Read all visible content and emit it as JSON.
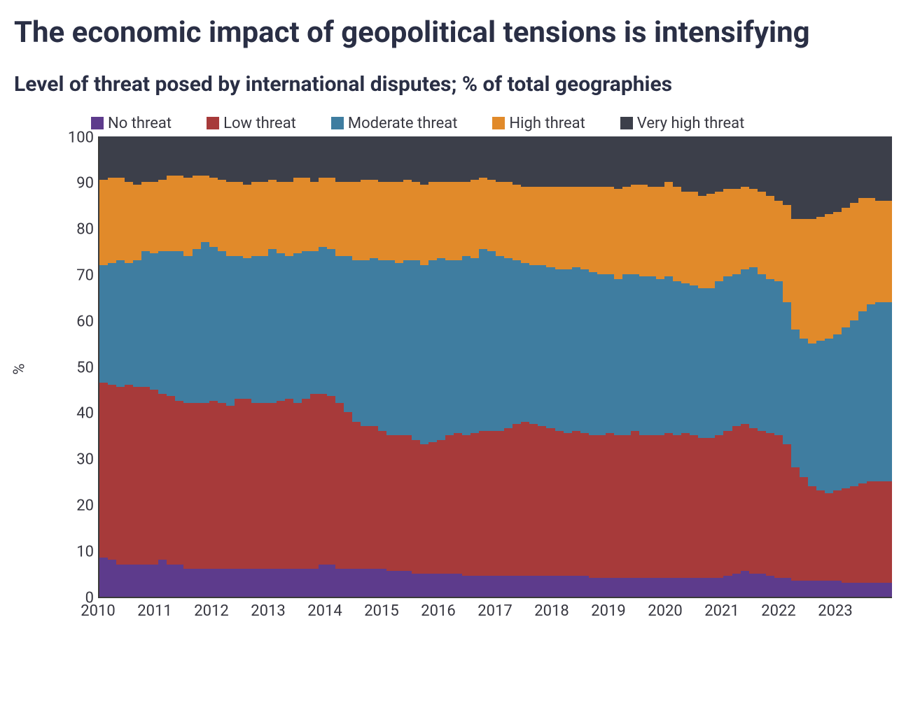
{
  "title": "The economic impact of geopolitical tensions is intensifying",
  "subtitle": "Level of threat posed by international disputes; % of total geographies",
  "chart": {
    "type": "stacked-area-100",
    "ylabel": "%",
    "ylim": [
      0,
      100
    ],
    "ytick_step": 10,
    "yticks": [
      0,
      10,
      20,
      30,
      40,
      50,
      60,
      70,
      80,
      90,
      100
    ],
    "xlim": [
      2010,
      2024
    ],
    "xticks": [
      2010,
      2011,
      2012,
      2013,
      2014,
      2015,
      2016,
      2017,
      2018,
      2019,
      2020,
      2021,
      2022,
      2023
    ],
    "background_color": "#ffffff",
    "axis_color": "#3a3a3a",
    "tick_font_size": 22,
    "title_font_size": 42,
    "subtitle_font_size": 30,
    "legend_position": "top",
    "legend": [
      {
        "label": "No threat",
        "color": "#5d3b8c"
      },
      {
        "label": "Low threat",
        "color": "#a73a3a"
      },
      {
        "label": "Moderate threat",
        "color": "#3f7da0"
      },
      {
        "label": "High threat",
        "color": "#e18a2a"
      },
      {
        "label": "Very high threat",
        "color": "#3c3f4a"
      }
    ],
    "series_order_bottom_to_top": [
      "no_threat",
      "low_threat",
      "moderate_threat",
      "high_threat",
      "very_high_threat"
    ],
    "series_colors": {
      "no_threat": "#5d3b8c",
      "low_threat": "#a73a3a",
      "moderate_threat": "#3f7da0",
      "high_threat": "#e18a2a",
      "very_high_threat": "#3c3f4a"
    },
    "cum": {
      "comment": "Cumulative boundaries (%) from bottom: c1=No, c2=No+Low, c3=+Moderate, c4=+High. VeryHigh fills to 100.",
      "points": [
        {
          "x": 2010.0,
          "c1": 8.5,
          "c2": 46.5,
          "c3": 72.0,
          "c4": 90.5
        },
        {
          "x": 2010.1,
          "c1": 8.0,
          "c2": 46.0,
          "c3": 72.5,
          "c4": 91.0
        },
        {
          "x": 2010.25,
          "c1": 7.0,
          "c2": 45.5,
          "c3": 73.0,
          "c4": 91.0
        },
        {
          "x": 2010.4,
          "c1": 7.0,
          "c2": 46.0,
          "c3": 72.5,
          "c4": 90.0
        },
        {
          "x": 2010.55,
          "c1": 7.0,
          "c2": 45.5,
          "c3": 73.0,
          "c4": 89.5
        },
        {
          "x": 2010.7,
          "c1": 7.0,
          "c2": 45.5,
          "c3": 75.0,
          "c4": 90.0
        },
        {
          "x": 2010.85,
          "c1": 7.0,
          "c2": 45.0,
          "c3": 74.5,
          "c4": 90.0
        },
        {
          "x": 2011.0,
          "c1": 8.0,
          "c2": 44.0,
          "c3": 75.0,
          "c4": 90.5
        },
        {
          "x": 2011.15,
          "c1": 7.0,
          "c2": 43.5,
          "c3": 75.0,
          "c4": 91.5
        },
        {
          "x": 2011.3,
          "c1": 7.0,
          "c2": 42.5,
          "c3": 75.0,
          "c4": 91.5
        },
        {
          "x": 2011.45,
          "c1": 6.0,
          "c2": 42.0,
          "c3": 74.0,
          "c4": 91.0
        },
        {
          "x": 2011.6,
          "c1": 6.0,
          "c2": 42.0,
          "c3": 75.5,
          "c4": 91.5
        },
        {
          "x": 2011.75,
          "c1": 6.0,
          "c2": 42.0,
          "c3": 77.0,
          "c4": 91.5
        },
        {
          "x": 2011.9,
          "c1": 6.0,
          "c2": 42.5,
          "c3": 76.0,
          "c4": 91.0
        },
        {
          "x": 2012.05,
          "c1": 6.0,
          "c2": 42.0,
          "c3": 75.0,
          "c4": 90.5
        },
        {
          "x": 2012.2,
          "c1": 6.0,
          "c2": 41.5,
          "c3": 74.0,
          "c4": 90.0
        },
        {
          "x": 2012.35,
          "c1": 6.0,
          "c2": 43.0,
          "c3": 74.0,
          "c4": 90.0
        },
        {
          "x": 2012.5,
          "c1": 6.0,
          "c2": 43.0,
          "c3": 73.5,
          "c4": 89.5
        },
        {
          "x": 2012.65,
          "c1": 6.0,
          "c2": 42.0,
          "c3": 74.0,
          "c4": 90.0
        },
        {
          "x": 2012.8,
          "c1": 6.0,
          "c2": 42.0,
          "c3": 74.0,
          "c4": 90.0
        },
        {
          "x": 2012.95,
          "c1": 6.0,
          "c2": 42.0,
          "c3": 75.5,
          "c4": 90.5
        },
        {
          "x": 2013.1,
          "c1": 6.0,
          "c2": 42.5,
          "c3": 74.5,
          "c4": 90.0
        },
        {
          "x": 2013.25,
          "c1": 6.0,
          "c2": 43.0,
          "c3": 74.0,
          "c4": 90.0
        },
        {
          "x": 2013.4,
          "c1": 6.0,
          "c2": 42.0,
          "c3": 74.5,
          "c4": 91.0
        },
        {
          "x": 2013.55,
          "c1": 6.0,
          "c2": 43.0,
          "c3": 75.0,
          "c4": 91.0
        },
        {
          "x": 2013.7,
          "c1": 6.0,
          "c2": 44.0,
          "c3": 75.0,
          "c4": 90.0
        },
        {
          "x": 2013.85,
          "c1": 7.0,
          "c2": 44.0,
          "c3": 76.0,
          "c4": 91.0
        },
        {
          "x": 2014.0,
          "c1": 7.0,
          "c2": 43.5,
          "c3": 75.5,
          "c4": 91.0
        },
        {
          "x": 2014.15,
          "c1": 6.0,
          "c2": 42.0,
          "c3": 74.0,
          "c4": 90.0
        },
        {
          "x": 2014.3,
          "c1": 6.0,
          "c2": 40.0,
          "c3": 74.0,
          "c4": 90.0
        },
        {
          "x": 2014.45,
          "c1": 6.0,
          "c2": 38.0,
          "c3": 73.0,
          "c4": 90.0
        },
        {
          "x": 2014.6,
          "c1": 6.0,
          "c2": 37.0,
          "c3": 73.0,
          "c4": 90.5
        },
        {
          "x": 2014.75,
          "c1": 6.0,
          "c2": 37.0,
          "c3": 73.5,
          "c4": 90.5
        },
        {
          "x": 2014.9,
          "c1": 6.0,
          "c2": 36.0,
          "c3": 73.0,
          "c4": 90.0
        },
        {
          "x": 2015.05,
          "c1": 5.5,
          "c2": 35.0,
          "c3": 73.0,
          "c4": 90.0
        },
        {
          "x": 2015.2,
          "c1": 5.5,
          "c2": 35.0,
          "c3": 72.5,
          "c4": 90.0
        },
        {
          "x": 2015.35,
          "c1": 5.5,
          "c2": 35.0,
          "c3": 73.0,
          "c4": 90.5
        },
        {
          "x": 2015.5,
          "c1": 5.0,
          "c2": 34.0,
          "c3": 73.0,
          "c4": 90.0
        },
        {
          "x": 2015.65,
          "c1": 5.0,
          "c2": 33.0,
          "c3": 72.0,
          "c4": 89.5
        },
        {
          "x": 2015.8,
          "c1": 5.0,
          "c2": 33.5,
          "c3": 73.0,
          "c4": 90.0
        },
        {
          "x": 2015.95,
          "c1": 5.0,
          "c2": 34.0,
          "c3": 73.5,
          "c4": 90.0
        },
        {
          "x": 2016.1,
          "c1": 5.0,
          "c2": 35.0,
          "c3": 73.0,
          "c4": 90.0
        },
        {
          "x": 2016.25,
          "c1": 5.0,
          "c2": 35.5,
          "c3": 73.0,
          "c4": 90.0
        },
        {
          "x": 2016.4,
          "c1": 4.5,
          "c2": 35.0,
          "c3": 74.0,
          "c4": 90.0
        },
        {
          "x": 2016.55,
          "c1": 4.5,
          "c2": 35.5,
          "c3": 73.5,
          "c4": 90.5
        },
        {
          "x": 2016.7,
          "c1": 4.5,
          "c2": 36.0,
          "c3": 75.5,
          "c4": 91.0
        },
        {
          "x": 2016.85,
          "c1": 4.5,
          "c2": 36.0,
          "c3": 75.0,
          "c4": 90.5
        },
        {
          "x": 2017.0,
          "c1": 4.5,
          "c2": 36.0,
          "c3": 74.0,
          "c4": 90.0
        },
        {
          "x": 2017.15,
          "c1": 4.5,
          "c2": 36.5,
          "c3": 73.5,
          "c4": 90.0
        },
        {
          "x": 2017.3,
          "c1": 4.5,
          "c2": 37.5,
          "c3": 73.0,
          "c4": 89.5
        },
        {
          "x": 2017.45,
          "c1": 4.5,
          "c2": 38.0,
          "c3": 72.5,
          "c4": 89.0
        },
        {
          "x": 2017.6,
          "c1": 4.5,
          "c2": 37.5,
          "c3": 72.0,
          "c4": 89.0
        },
        {
          "x": 2017.75,
          "c1": 4.5,
          "c2": 37.0,
          "c3": 72.0,
          "c4": 89.0
        },
        {
          "x": 2017.9,
          "c1": 4.5,
          "c2": 36.5,
          "c3": 71.5,
          "c4": 89.0
        },
        {
          "x": 2018.05,
          "c1": 4.5,
          "c2": 36.0,
          "c3": 71.0,
          "c4": 89.0
        },
        {
          "x": 2018.2,
          "c1": 4.5,
          "c2": 35.5,
          "c3": 71.0,
          "c4": 89.0
        },
        {
          "x": 2018.35,
          "c1": 4.5,
          "c2": 36.0,
          "c3": 71.5,
          "c4": 89.0
        },
        {
          "x": 2018.5,
          "c1": 4.5,
          "c2": 35.5,
          "c3": 71.0,
          "c4": 89.0
        },
        {
          "x": 2018.65,
          "c1": 4.0,
          "c2": 35.0,
          "c3": 70.5,
          "c4": 89.0
        },
        {
          "x": 2018.8,
          "c1": 4.0,
          "c2": 35.0,
          "c3": 70.0,
          "c4": 89.0
        },
        {
          "x": 2018.95,
          "c1": 4.0,
          "c2": 35.5,
          "c3": 70.0,
          "c4": 89.0
        },
        {
          "x": 2019.1,
          "c1": 4.0,
          "c2": 35.0,
          "c3": 69.0,
          "c4": 88.5
        },
        {
          "x": 2019.25,
          "c1": 4.0,
          "c2": 35.0,
          "c3": 70.0,
          "c4": 89.0
        },
        {
          "x": 2019.4,
          "c1": 4.0,
          "c2": 36.0,
          "c3": 70.0,
          "c4": 89.5
        },
        {
          "x": 2019.55,
          "c1": 4.0,
          "c2": 35.0,
          "c3": 69.5,
          "c4": 89.5
        },
        {
          "x": 2019.7,
          "c1": 4.0,
          "c2": 35.0,
          "c3": 69.5,
          "c4": 89.0
        },
        {
          "x": 2019.85,
          "c1": 4.0,
          "c2": 35.0,
          "c3": 69.0,
          "c4": 89.0
        },
        {
          "x": 2020.0,
          "c1": 4.0,
          "c2": 35.5,
          "c3": 69.5,
          "c4": 90.0
        },
        {
          "x": 2020.15,
          "c1": 4.0,
          "c2": 35.0,
          "c3": 68.5,
          "c4": 89.0
        },
        {
          "x": 2020.3,
          "c1": 4.0,
          "c2": 35.5,
          "c3": 68.0,
          "c4": 88.0
        },
        {
          "x": 2020.45,
          "c1": 4.0,
          "c2": 35.0,
          "c3": 67.5,
          "c4": 88.0
        },
        {
          "x": 2020.6,
          "c1": 4.0,
          "c2": 34.5,
          "c3": 67.0,
          "c4": 87.0
        },
        {
          "x": 2020.75,
          "c1": 4.0,
          "c2": 34.5,
          "c3": 67.0,
          "c4": 87.5
        },
        {
          "x": 2020.9,
          "c1": 4.0,
          "c2": 35.0,
          "c3": 68.5,
          "c4": 88.0
        },
        {
          "x": 2021.05,
          "c1": 4.5,
          "c2": 36.0,
          "c3": 69.5,
          "c4": 88.5
        },
        {
          "x": 2021.2,
          "c1": 5.0,
          "c2": 37.0,
          "c3": 70.0,
          "c4": 88.5
        },
        {
          "x": 2021.35,
          "c1": 5.5,
          "c2": 37.5,
          "c3": 71.0,
          "c4": 89.0
        },
        {
          "x": 2021.5,
          "c1": 5.0,
          "c2": 36.5,
          "c3": 71.5,
          "c4": 88.5
        },
        {
          "x": 2021.65,
          "c1": 5.0,
          "c2": 36.0,
          "c3": 70.0,
          "c4": 88.0
        },
        {
          "x": 2021.8,
          "c1": 4.5,
          "c2": 35.5,
          "c3": 69.0,
          "c4": 87.0
        },
        {
          "x": 2021.95,
          "c1": 4.0,
          "c2": 35.0,
          "c3": 68.5,
          "c4": 86.0
        },
        {
          "x": 2022.1,
          "c1": 4.0,
          "c2": 33.0,
          "c3": 64.0,
          "c4": 85.0
        },
        {
          "x": 2022.25,
          "c1": 3.5,
          "c2": 28.0,
          "c3": 58.0,
          "c4": 82.0
        },
        {
          "x": 2022.4,
          "c1": 3.5,
          "c2": 26.0,
          "c3": 56.0,
          "c4": 82.0
        },
        {
          "x": 2022.55,
          "c1": 3.5,
          "c2": 24.0,
          "c3": 55.0,
          "c4": 82.0
        },
        {
          "x": 2022.7,
          "c1": 3.5,
          "c2": 23.0,
          "c3": 55.5,
          "c4": 82.5
        },
        {
          "x": 2022.85,
          "c1": 3.5,
          "c2": 22.5,
          "c3": 56.0,
          "c4": 83.0
        },
        {
          "x": 2023.0,
          "c1": 3.5,
          "c2": 23.0,
          "c3": 57.0,
          "c4": 83.5
        },
        {
          "x": 2023.15,
          "c1": 3.0,
          "c2": 23.5,
          "c3": 58.5,
          "c4": 84.5
        },
        {
          "x": 2023.3,
          "c1": 3.0,
          "c2": 24.0,
          "c3": 60.0,
          "c4": 85.5
        },
        {
          "x": 2023.45,
          "c1": 3.0,
          "c2": 24.5,
          "c3": 62.0,
          "c4": 86.5
        },
        {
          "x": 2023.6,
          "c1": 3.0,
          "c2": 25.0,
          "c3": 63.5,
          "c4": 86.5
        },
        {
          "x": 2023.75,
          "c1": 3.0,
          "c2": 25.0,
          "c3": 64.0,
          "c4": 86.0
        },
        {
          "x": 2023.9,
          "c1": 3.0,
          "c2": 25.0,
          "c3": 64.0,
          "c4": 86.0
        }
      ]
    }
  }
}
